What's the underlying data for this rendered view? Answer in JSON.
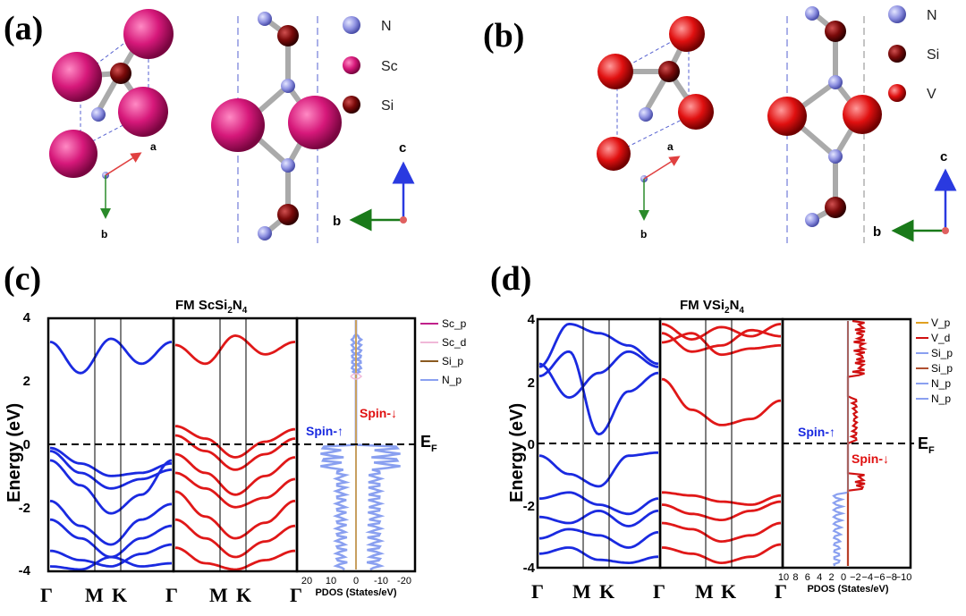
{
  "panels": {
    "a": "(a)",
    "b": "(b)",
    "c": "(c)",
    "d": "(d)"
  },
  "structure_a": {
    "legend": [
      {
        "label": "N",
        "color": "#8c8fe0"
      },
      {
        "label": "Sc",
        "color": "#d6187a"
      },
      {
        "label": "Si",
        "color": "#7a0a0a"
      }
    ],
    "axes": {
      "a": "a",
      "b": "b",
      "c": "c",
      "b2": "b"
    }
  },
  "structure_b": {
    "legend": [
      {
        "label": "N",
        "color": "#8c8fe0"
      },
      {
        "label": "Si",
        "color": "#7a0a0a"
      },
      {
        "label": "V",
        "color": "#e01010"
      }
    ],
    "axes": {
      "a": "a",
      "b": "b",
      "c": "c",
      "b2": "b"
    }
  },
  "plot_c": {
    "title_main": "FM ScSi",
    "title_sub1": "2",
    "title_mid": "N",
    "title_sub2": "4",
    "ylabel": "Energy (eV)",
    "yticks": [
      "4",
      "2",
      "0",
      "-2",
      "-4"
    ],
    "kpoints_up": [
      "Γ",
      "M",
      "K",
      "Γ"
    ],
    "kpoints_dn": [
      "M",
      "K",
      "Γ"
    ],
    "pdos_ticks": [
      "20",
      "10",
      "0",
      "-10",
      "-20"
    ],
    "pdos_label": "PDOS (States/eV)",
    "spin_up": "Spin-↑",
    "spin_dn": "Spin-↓",
    "ef_main": "E",
    "ef_sub": "F",
    "legend": [
      {
        "label": "Sc_p",
        "color": "#c0208a"
      },
      {
        "label": "Sc_d",
        "color": "#f0b8d8"
      },
      {
        "label": "Si_p",
        "color": "#8a5a20"
      },
      {
        "label": "N_p",
        "color": "#8aa0f0"
      }
    ]
  },
  "plot_d": {
    "title_main": "FM VSi",
    "title_sub1": "2",
    "title_mid": "N",
    "title_sub2": "4",
    "ylabel": "Energy (eV)",
    "yticks": [
      "4",
      "2",
      "0",
      "-2",
      "-4"
    ],
    "kpoints_up": [
      "Γ",
      "M",
      "K",
      "Γ"
    ],
    "kpoints_dn": [
      "M",
      "K",
      "Γ"
    ],
    "pdos_ticks": [
      "10",
      "8",
      "6",
      "4",
      "2",
      "0",
      "−2",
      "−4",
      "−6",
      "−8",
      "−10"
    ],
    "pdos_label": "PDOS (States/eV)",
    "spin_up": "Spin-↑",
    "spin_dn": "Spin-↓",
    "ef_main": "E",
    "ef_sub": "F",
    "legend": [
      {
        "label": "V_p",
        "color": "#e0a020"
      },
      {
        "label": "V_d",
        "color": "#d01010"
      },
      {
        "label": "Si_p",
        "color": "#8aa0f0"
      },
      {
        "label": "Si_p",
        "color": "#b05030"
      },
      {
        "label": "N_p",
        "color": "#8aa0f0"
      },
      {
        "label": "N_p",
        "color": "#8aa0f0"
      }
    ]
  },
  "chart_data": [
    {
      "type": "line",
      "title": "FM ScSi2N4",
      "ylabel": "Energy (eV)",
      "ylim": [
        -4,
        4
      ],
      "x_kpath": [
        "Γ",
        "M",
        "K",
        "Γ"
      ],
      "series": [
        {
          "name": "Spin-↑",
          "band_minimum_eV": 2.3,
          "valence_maximum_eV": -0.05
        },
        {
          "name": "Spin-↓",
          "band_minimum_eV": 2.5,
          "valence_maximum_eV": 0.6
        }
      ]
    },
    {
      "type": "line",
      "title": "FM VSi2N4",
      "ylabel": "Energy (eV)",
      "ylim": [
        -4,
        4
      ],
      "x_kpath": [
        "Γ",
        "M",
        "K",
        "Γ"
      ],
      "series": [
        {
          "name": "Spin-↑",
          "band_minimum_eV": 0.3,
          "valence_maximum_eV": -0.3
        },
        {
          "name": "Spin-↓",
          "band_minimum_eV": 0.6,
          "valence_maximum_eV": -1.6
        }
      ]
    }
  ]
}
